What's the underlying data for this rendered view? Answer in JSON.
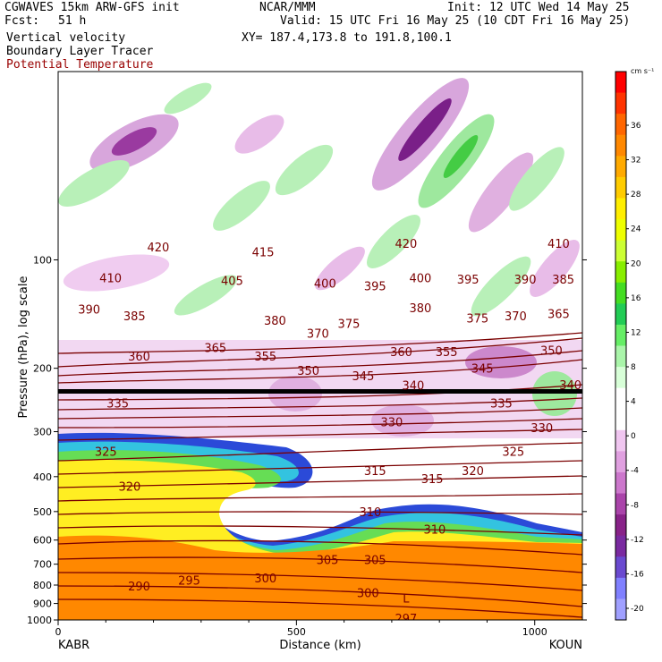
{
  "header": {
    "model": "CGWAVES 15km ARW-GFS init",
    "org": "NCAR/MMM",
    "init": "Init: 12 UTC Wed 14 May 25",
    "fcst_label": "Fcst:",
    "fcst_value": "51 h",
    "valid": "Valid: 15 UTC Fri 16 May 25 (10 CDT Fri 16 May 25)",
    "field1": "Vertical velocity",
    "field2": "Boundary Layer Tracer",
    "field3": "Potential Temperature",
    "xy": "XY= 187.4,173.8 to 191.8,100.1"
  },
  "colors": {
    "theta_line": "#7a0000",
    "tropopause": "#000000"
  },
  "chart_data": {
    "type": "heatmap",
    "xlabel": "Distance (km)",
    "ylabel": "Pressure (hPa), log scale",
    "x_ticks": [
      0,
      500,
      1000
    ],
    "x_range": [
      0,
      1100
    ],
    "y_ticks": [
      100,
      200,
      300,
      400,
      500,
      600,
      700,
      800,
      900,
      1000
    ],
    "y_scale": "log",
    "y_range": [
      1000,
      30
    ],
    "endpoints": {
      "left": "KABR",
      "right": "KOUN"
    },
    "colorbar": {
      "unit": "cm s⁻¹",
      "labels": [
        36,
        32,
        28,
        24,
        20,
        16,
        12,
        8,
        4,
        0,
        -4,
        -8,
        -12,
        -16,
        -20
      ],
      "colors": [
        "#ff0000",
        "#ff3300",
        "#ff6600",
        "#ff8800",
        "#ffaa00",
        "#ffcc00",
        "#ffee00",
        "#eeff00",
        "#ccff33",
        "#88ee00",
        "#44dd22",
        "#22cc55",
        "#66ee66",
        "#aaf5aa",
        "#d8ffd8",
        "#ffffff",
        "#ffffff",
        "#f0c6f0",
        "#e0a0e0",
        "#cc77cc",
        "#aa44aa",
        "#882288",
        "#7a2aa0",
        "#6a4ad0",
        "#8080ff",
        "#a0a0ff"
      ],
      "placement": "right"
    },
    "theta_labels": [
      {
        "value": "420",
        "x": 210,
        "p": 92
      },
      {
        "value": "415",
        "x": 430,
        "p": 95
      },
      {
        "value": "420",
        "x": 730,
        "p": 90
      },
      {
        "value": "410",
        "x": 1050,
        "p": 90
      },
      {
        "value": "410",
        "x": 110,
        "p": 112
      },
      {
        "value": "405",
        "x": 365,
        "p": 114
      },
      {
        "value": "400",
        "x": 560,
        "p": 116
      },
      {
        "value": "395",
        "x": 665,
        "p": 118
      },
      {
        "value": "400",
        "x": 760,
        "p": 112
      },
      {
        "value": "395",
        "x": 860,
        "p": 113
      },
      {
        "value": "390",
        "x": 980,
        "p": 113
      },
      {
        "value": "385",
        "x": 1060,
        "p": 113
      },
      {
        "value": "390",
        "x": 65,
        "p": 137
      },
      {
        "value": "385",
        "x": 160,
        "p": 143
      },
      {
        "value": "380",
        "x": 455,
        "p": 147
      },
      {
        "value": "375",
        "x": 610,
        "p": 150
      },
      {
        "value": "380",
        "x": 760,
        "p": 136
      },
      {
        "value": "375",
        "x": 880,
        "p": 145
      },
      {
        "value": "370",
        "x": 960,
        "p": 143
      },
      {
        "value": "365",
        "x": 1050,
        "p": 141
      },
      {
        "value": "370",
        "x": 545,
        "p": 160
      },
      {
        "value": "365",
        "x": 330,
        "p": 175
      },
      {
        "value": "360",
        "x": 170,
        "p": 185
      },
      {
        "value": "355",
        "x": 435,
        "p": 185
      },
      {
        "value": "360",
        "x": 720,
        "p": 180
      },
      {
        "value": "355",
        "x": 815,
        "p": 180
      },
      {
        "value": "350",
        "x": 1035,
        "p": 178
      },
      {
        "value": "350",
        "x": 525,
        "p": 203
      },
      {
        "value": "345",
        "x": 640,
        "p": 210
      },
      {
        "value": "345",
        "x": 890,
        "p": 200
      },
      {
        "value": "340",
        "x": 745,
        "p": 223
      },
      {
        "value": "340",
        "x": 1075,
        "p": 222
      },
      {
        "value": "335",
        "x": 125,
        "p": 250
      },
      {
        "value": "335",
        "x": 930,
        "p": 250
      },
      {
        "value": "330",
        "x": 700,
        "p": 282
      },
      {
        "value": "330",
        "x": 1015,
        "p": 292
      },
      {
        "value": "325",
        "x": 100,
        "p": 340
      },
      {
        "value": "325",
        "x": 955,
        "p": 340
      },
      {
        "value": "315",
        "x": 665,
        "p": 385
      },
      {
        "value": "315",
        "x": 785,
        "p": 405
      },
      {
        "value": "320",
        "x": 870,
        "p": 385
      },
      {
        "value": "320",
        "x": 150,
        "p": 425
      },
      {
        "value": "310",
        "x": 655,
        "p": 500
      },
      {
        "value": "310",
        "x": 790,
        "p": 560
      },
      {
        "value": "305",
        "x": 565,
        "p": 680
      },
      {
        "value": "305",
        "x": 665,
        "p": 680
      },
      {
        "value": "300",
        "x": 435,
        "p": 765
      },
      {
        "value": "300",
        "x": 650,
        "p": 840
      },
      {
        "value": "295",
        "x": 275,
        "p": 775
      },
      {
        "value": "290",
        "x": 170,
        "p": 805
      },
      {
        "value": "L",
        "x": 730,
        "p": 870
      },
      {
        "value": "297",
        "x": 730,
        "p": 990
      }
    ]
  }
}
